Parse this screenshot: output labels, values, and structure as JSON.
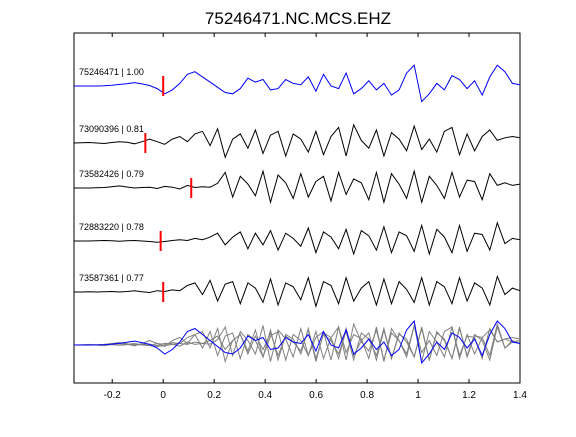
{
  "chart_data": {
    "type": "line",
    "title": "75246471.NC.MCS.EHZ",
    "xlabel": "",
    "ylabel": "",
    "xlim": [
      -0.35,
      1.4
    ],
    "x_ticks": [
      -0.2,
      0,
      0.2,
      0.4,
      0.6,
      0.8,
      1,
      1.2,
      1.4
    ],
    "x_tick_labels": [
      "-0.2",
      "0",
      "0.2",
      "0.4",
      "0.6",
      "0.8",
      "1",
      "1.2",
      "1.4"
    ],
    "grid": false,
    "legend": "none",
    "traces": [
      {
        "label": "75246471 | 1.00",
        "pick_x": 0.0,
        "color": "#0000ff",
        "y": [
          0.0,
          0.0,
          0.0,
          0.0,
          0.01,
          0.03,
          0.06,
          0.09,
          0.13,
          0.08,
          0.02,
          -0.1,
          -0.3,
          -0.15,
          0.1,
          0.45,
          0.55,
          0.35,
          0.15,
          -0.05,
          -0.25,
          -0.3,
          -0.1,
          0.3,
          0.15,
          0.25,
          -0.15,
          -0.1,
          0.25,
          0.1,
          0.05,
          0.35,
          -0.2,
          0.45,
          0.0,
          -0.1,
          0.5,
          -0.3,
          -0.1,
          0.2,
          -0.15,
          0.1,
          -0.35,
          -0.15,
          0.5,
          0.8,
          -0.6,
          -0.3,
          0.1,
          -0.15,
          0.4,
          0.25,
          -0.1,
          0.2,
          -0.35,
          0.35,
          0.8,
          0.55,
          0.1,
          0.05
        ]
      },
      {
        "label": "73090396 | 0.81",
        "pick_x": -0.07,
        "color": "#000000",
        "y": [
          0.0,
          0.01,
          0.02,
          0.0,
          -0.02,
          0.02,
          0.05,
          0.03,
          -0.03,
          0.05,
          0.15,
          0.05,
          -0.05,
          0.15,
          0.25,
          0.05,
          0.35,
          0.45,
          -0.1,
          0.55,
          -0.55,
          0.15,
          0.35,
          -0.2,
          0.5,
          -0.4,
          0.3,
          0.45,
          -0.5,
          0.35,
          0.15,
          -0.35,
          0.45,
          -0.45,
          0.25,
          0.6,
          -0.5,
          0.7,
          0.1,
          -0.2,
          0.5,
          -0.5,
          0.4,
          0.15,
          -0.3,
          0.65,
          -0.25,
          0.15,
          -0.35,
          0.45,
          0.6,
          -0.45,
          0.35,
          -0.3,
          0.25,
          0.5,
          0.1,
          0.2,
          0.25,
          0.2
        ]
      },
      {
        "label": "73582426 | 0.79",
        "pick_x": 0.11,
        "color": "#000000",
        "y": [
          0.0,
          0.0,
          0.0,
          0.01,
          0.02,
          0.05,
          0.08,
          0.04,
          0.0,
          0.02,
          0.03,
          -0.02,
          0.06,
          0.03,
          -0.04,
          0.1,
          0.02,
          0.05,
          0.03,
          0.18,
          0.6,
          -0.35,
          0.45,
          0.15,
          -0.3,
          0.65,
          -0.55,
          0.5,
          0.2,
          -0.4,
          0.55,
          -0.35,
          0.25,
          0.45,
          -0.5,
          0.6,
          -0.25,
          0.35,
          0.2,
          -0.45,
          0.6,
          -0.55,
          0.55,
          0.15,
          -0.4,
          0.65,
          -0.55,
          0.45,
          0.1,
          -0.4,
          0.6,
          -0.35,
          0.3,
          0.25,
          -0.45,
          0.55,
          0.1,
          0.2,
          0.1,
          0.15
        ]
      },
      {
        "label": "72883220 | 0.78",
        "pick_x": -0.01,
        "color": "#000000",
        "y": [
          0.0,
          0.0,
          0.0,
          0.01,
          0.02,
          0.01,
          -0.01,
          0.01,
          0.02,
          0.0,
          -0.02,
          -0.05,
          -0.02,
          0.02,
          0.05,
          0.02,
          0.1,
          0.05,
          0.15,
          0.3,
          -0.15,
          0.15,
          0.35,
          -0.3,
          0.3,
          -0.15,
          0.4,
          -0.35,
          0.3,
          0.1,
          -0.2,
          0.5,
          -0.45,
          0.35,
          0.15,
          -0.3,
          0.45,
          -0.5,
          0.4,
          0.2,
          -0.35,
          0.55,
          -0.45,
          0.35,
          0.2,
          -0.4,
          0.6,
          -0.5,
          0.45,
          0.15,
          -0.45,
          0.6,
          -0.4,
          0.3,
          0.25,
          -0.35,
          0.7,
          -0.1,
          0.1,
          0.05
        ]
      },
      {
        "label": "73587361 | 0.77",
        "pick_x": 0.0,
        "color": "#000000",
        "y": [
          0.0,
          0.0,
          0.01,
          0.0,
          0.01,
          0.02,
          0.0,
          0.02,
          0.05,
          0.01,
          -0.02,
          0.05,
          0.02,
          0.08,
          0.05,
          0.25,
          0.35,
          -0.1,
          0.45,
          -0.35,
          0.3,
          0.4,
          -0.45,
          0.35,
          0.15,
          -0.4,
          0.5,
          -0.5,
          0.35,
          0.2,
          -0.3,
          0.55,
          -0.55,
          0.4,
          0.25,
          -0.45,
          0.55,
          -0.35,
          0.15,
          0.4,
          -0.5,
          0.5,
          -0.45,
          0.4,
          0.1,
          -0.4,
          0.55,
          -0.5,
          0.4,
          0.2,
          -0.45,
          0.55,
          -0.35,
          0.35,
          0.15,
          -0.5,
          0.6,
          -0.1,
          0.15,
          0.05
        ]
      }
    ]
  }
}
